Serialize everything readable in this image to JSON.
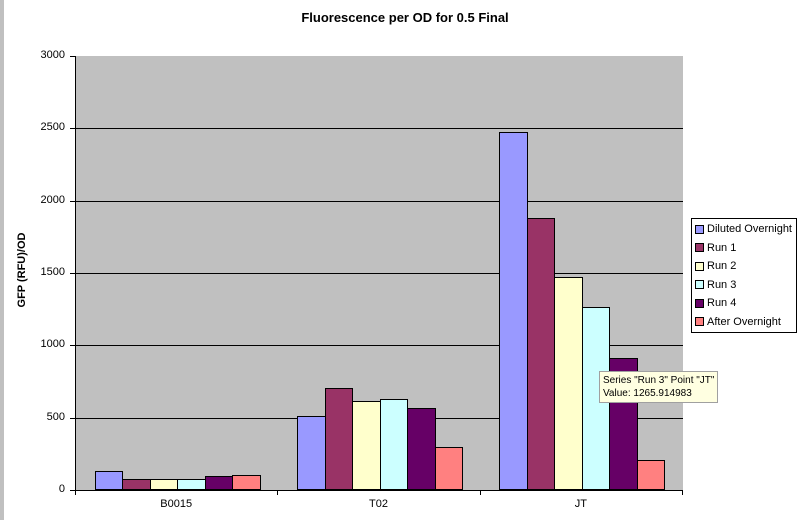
{
  "chart_data": {
    "type": "bar",
    "title": "Fluorescence per OD for 0.5 Final",
    "xlabel": "",
    "ylabel": "GFP (RFU)/OD",
    "ylim": [
      0,
      3000
    ],
    "yticks": [
      0,
      500,
      1000,
      1500,
      2000,
      2500,
      3000
    ],
    "grid": true,
    "legend_position": "right",
    "categories": [
      "B0015",
      "T02",
      "JT"
    ],
    "series": [
      {
        "name": "Diluted Overnight",
        "color": "#9999ff",
        "values": [
          130,
          510,
          2475
        ]
      },
      {
        "name": "Run 1",
        "color": "#993366",
        "values": [
          75,
          705,
          1880
        ]
      },
      {
        "name": "Run 2",
        "color": "#ffffcc",
        "values": [
          75,
          615,
          1475
        ]
      },
      {
        "name": "Run 3",
        "color": "#ccffff",
        "values": [
          75,
          630,
          1265.914983
        ]
      },
      {
        "name": "Run 4",
        "color": "#660066",
        "values": [
          95,
          565,
          910
        ]
      },
      {
        "name": "After Overnight",
        "color": "#ff8080",
        "values": [
          105,
          300,
          210
        ]
      }
    ]
  },
  "tooltip": {
    "line1": "Series \"Run 3\" Point \"JT\"",
    "line2": "Value: 1265.914983"
  },
  "colors": {
    "plot_background": "#c0c0c0",
    "tooltip_background": "#ffffe1"
  }
}
